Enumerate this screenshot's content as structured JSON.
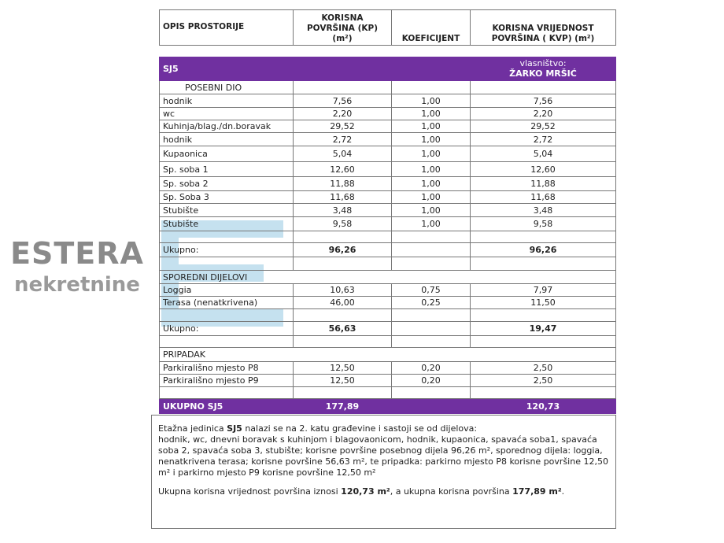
{
  "header": {
    "col1": "OPIS  PROSTORIJE",
    "col2": "KORISNA POVRŠINA (KP) (m²)",
    "col3": "KOEFICIJENT",
    "col4": "KORISNA VRIJEDNOST POVRŠINA ( KVP) (m²)"
  },
  "unit": {
    "name": "SJ5",
    "owner_label": "vlasništvo:",
    "owner": "ŽARKO MRŠIĆ"
  },
  "posebni": {
    "title": "POSEBNI DIO",
    "rows": [
      [
        "hodnik",
        "7,56",
        "1,00",
        "7,56"
      ],
      [
        "wc",
        "2,20",
        "1,00",
        "2,20"
      ],
      [
        "Kuhinja/blag./dn.boravak",
        "29,52",
        "1,00",
        "29,52"
      ],
      [
        "hodnik",
        "2,72",
        "1,00",
        "2,72"
      ],
      [
        "Kupaonica",
        "5,04",
        "1,00",
        "5,04"
      ],
      [
        "Sp. soba 1",
        "12,60",
        "1,00",
        "12,60"
      ],
      [
        "Sp. soba 2",
        "11,88",
        "1,00",
        "11,88"
      ],
      [
        "Sp. Soba 3",
        "11,68",
        "1,00",
        "11,68"
      ],
      [
        "Stubište",
        "3,48",
        "1,00",
        "3,48"
      ],
      [
        "Stubište",
        "9,58",
        "1,00",
        "9,58"
      ]
    ],
    "total_label": "Ukupno:",
    "total_kp": "96,26",
    "total_kvp": "96,26"
  },
  "sporedni": {
    "title": "SPOREDNI DIJELOVI",
    "rows": [
      [
        "Loggia",
        "10,63",
        "0,75",
        "7,97"
      ],
      [
        "Terasa (nenatkrivena)",
        "46,00",
        "0,25",
        "11,50"
      ]
    ],
    "total_label": "Ukupno:",
    "total_kp": "56,63",
    "total_kvp": "19,47"
  },
  "pripadak": {
    "title": "PRIPADAK",
    "rows": [
      [
        "Parkirališno mjesto P8",
        "12,50",
        "0,20",
        "2,50"
      ],
      [
        "Parkirališno mjesto P9",
        "12,50",
        "0,20",
        "2,50"
      ]
    ]
  },
  "grand": {
    "label": "UKUPNO SJ5",
    "kp": "177,89",
    "kvp": "120,73"
  },
  "note": {
    "l1a": "Etažna jedinica ",
    "l1b": "SJ5",
    "l1c": " nalazi se na 2. katu građevine i sastoji se od dijelova:",
    "l2": "hodnik, wc, dnevni boravak s kuhinjom i blagovaonicom, hodnik, kupaonica, spavaća soba1, spavaća soba 2, spavaća soba 3, stubište; korisne površine posebnog dijela 96,26 m², sporednog dijela: loggia, nenatkrivena terasa; korisne površine 56,63 m², te pripadka: parkirno mjesto P8 korisne površine 12,50 m² i parkirno mjesto P9 korisne površine 12,50 m²",
    "s1": "Ukupna korisna vrijednost površina iznosi ",
    "s2": "120,73 m²",
    "s3": ", a ukupna korisna površina ",
    "s4": "177,89 m²",
    "s5": "."
  },
  "watermark": {
    "title": "ESTERA",
    "sub": "nekretnine"
  },
  "colors": {
    "accent": "#7030a0"
  }
}
